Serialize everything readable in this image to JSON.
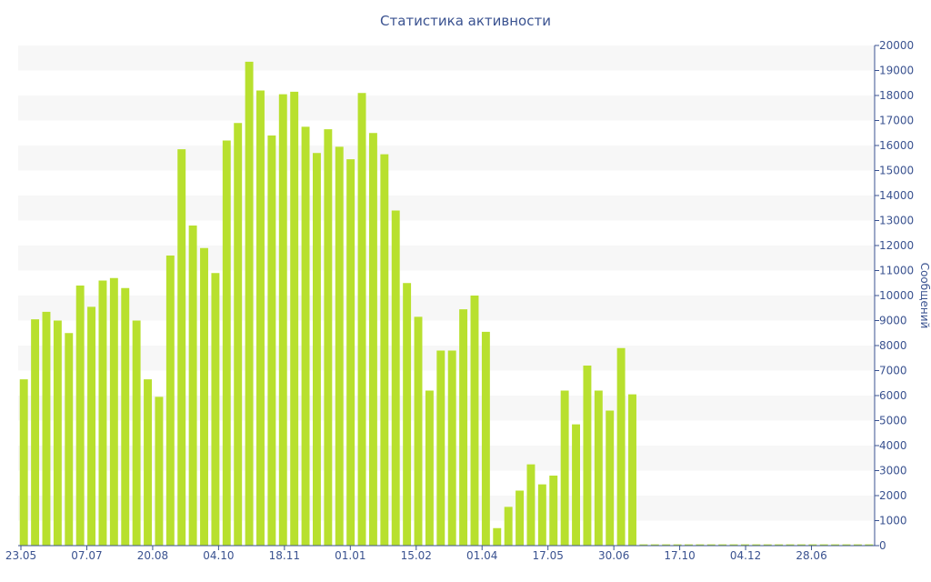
{
  "chart_data": {
    "type": "bar",
    "title": "Статистика активности",
    "ylabel": "Сообщений",
    "xlabel": "",
    "ylim": [
      0,
      20000
    ],
    "y_ticks": [
      0,
      1000,
      2000,
      3000,
      4000,
      5000,
      6000,
      7000,
      8000,
      9000,
      10000,
      11000,
      12000,
      13000,
      14000,
      15000,
      16000,
      17000,
      18000,
      19000,
      20000
    ],
    "x_tick_labels": [
      "23.05",
      "07.07",
      "20.08",
      "04.10",
      "18.11",
      "01.01",
      "15.02",
      "01.04",
      "17.05",
      "30.06",
      "17.10",
      "04.12",
      "28.06"
    ],
    "bar_color": "#b8e02e",
    "grid": "alternating horizontal bands",
    "y_axis_position": "right",
    "values": [
      6650,
      9050,
      9350,
      9000,
      8500,
      10400,
      9550,
      10600,
      10700,
      10300,
      9000,
      6650,
      5950,
      11600,
      15850,
      12800,
      11900,
      10900,
      16200,
      16900,
      19350,
      18200,
      16400,
      18050,
      18150,
      16750,
      15700,
      16650,
      15950,
      15450,
      18100,
      16500,
      15650,
      13400,
      10500,
      9150,
      6200,
      7800,
      7800,
      9450,
      10000,
      8550,
      700,
      1550,
      2200,
      3250,
      2450,
      2800,
      6200,
      4850,
      7200,
      6200,
      5400,
      7900,
      6050,
      50,
      50,
      50,
      50,
      50,
      50,
      50,
      50,
      50,
      50,
      50,
      50,
      50,
      50,
      50,
      50,
      50,
      50,
      50,
      50,
      50
    ]
  }
}
